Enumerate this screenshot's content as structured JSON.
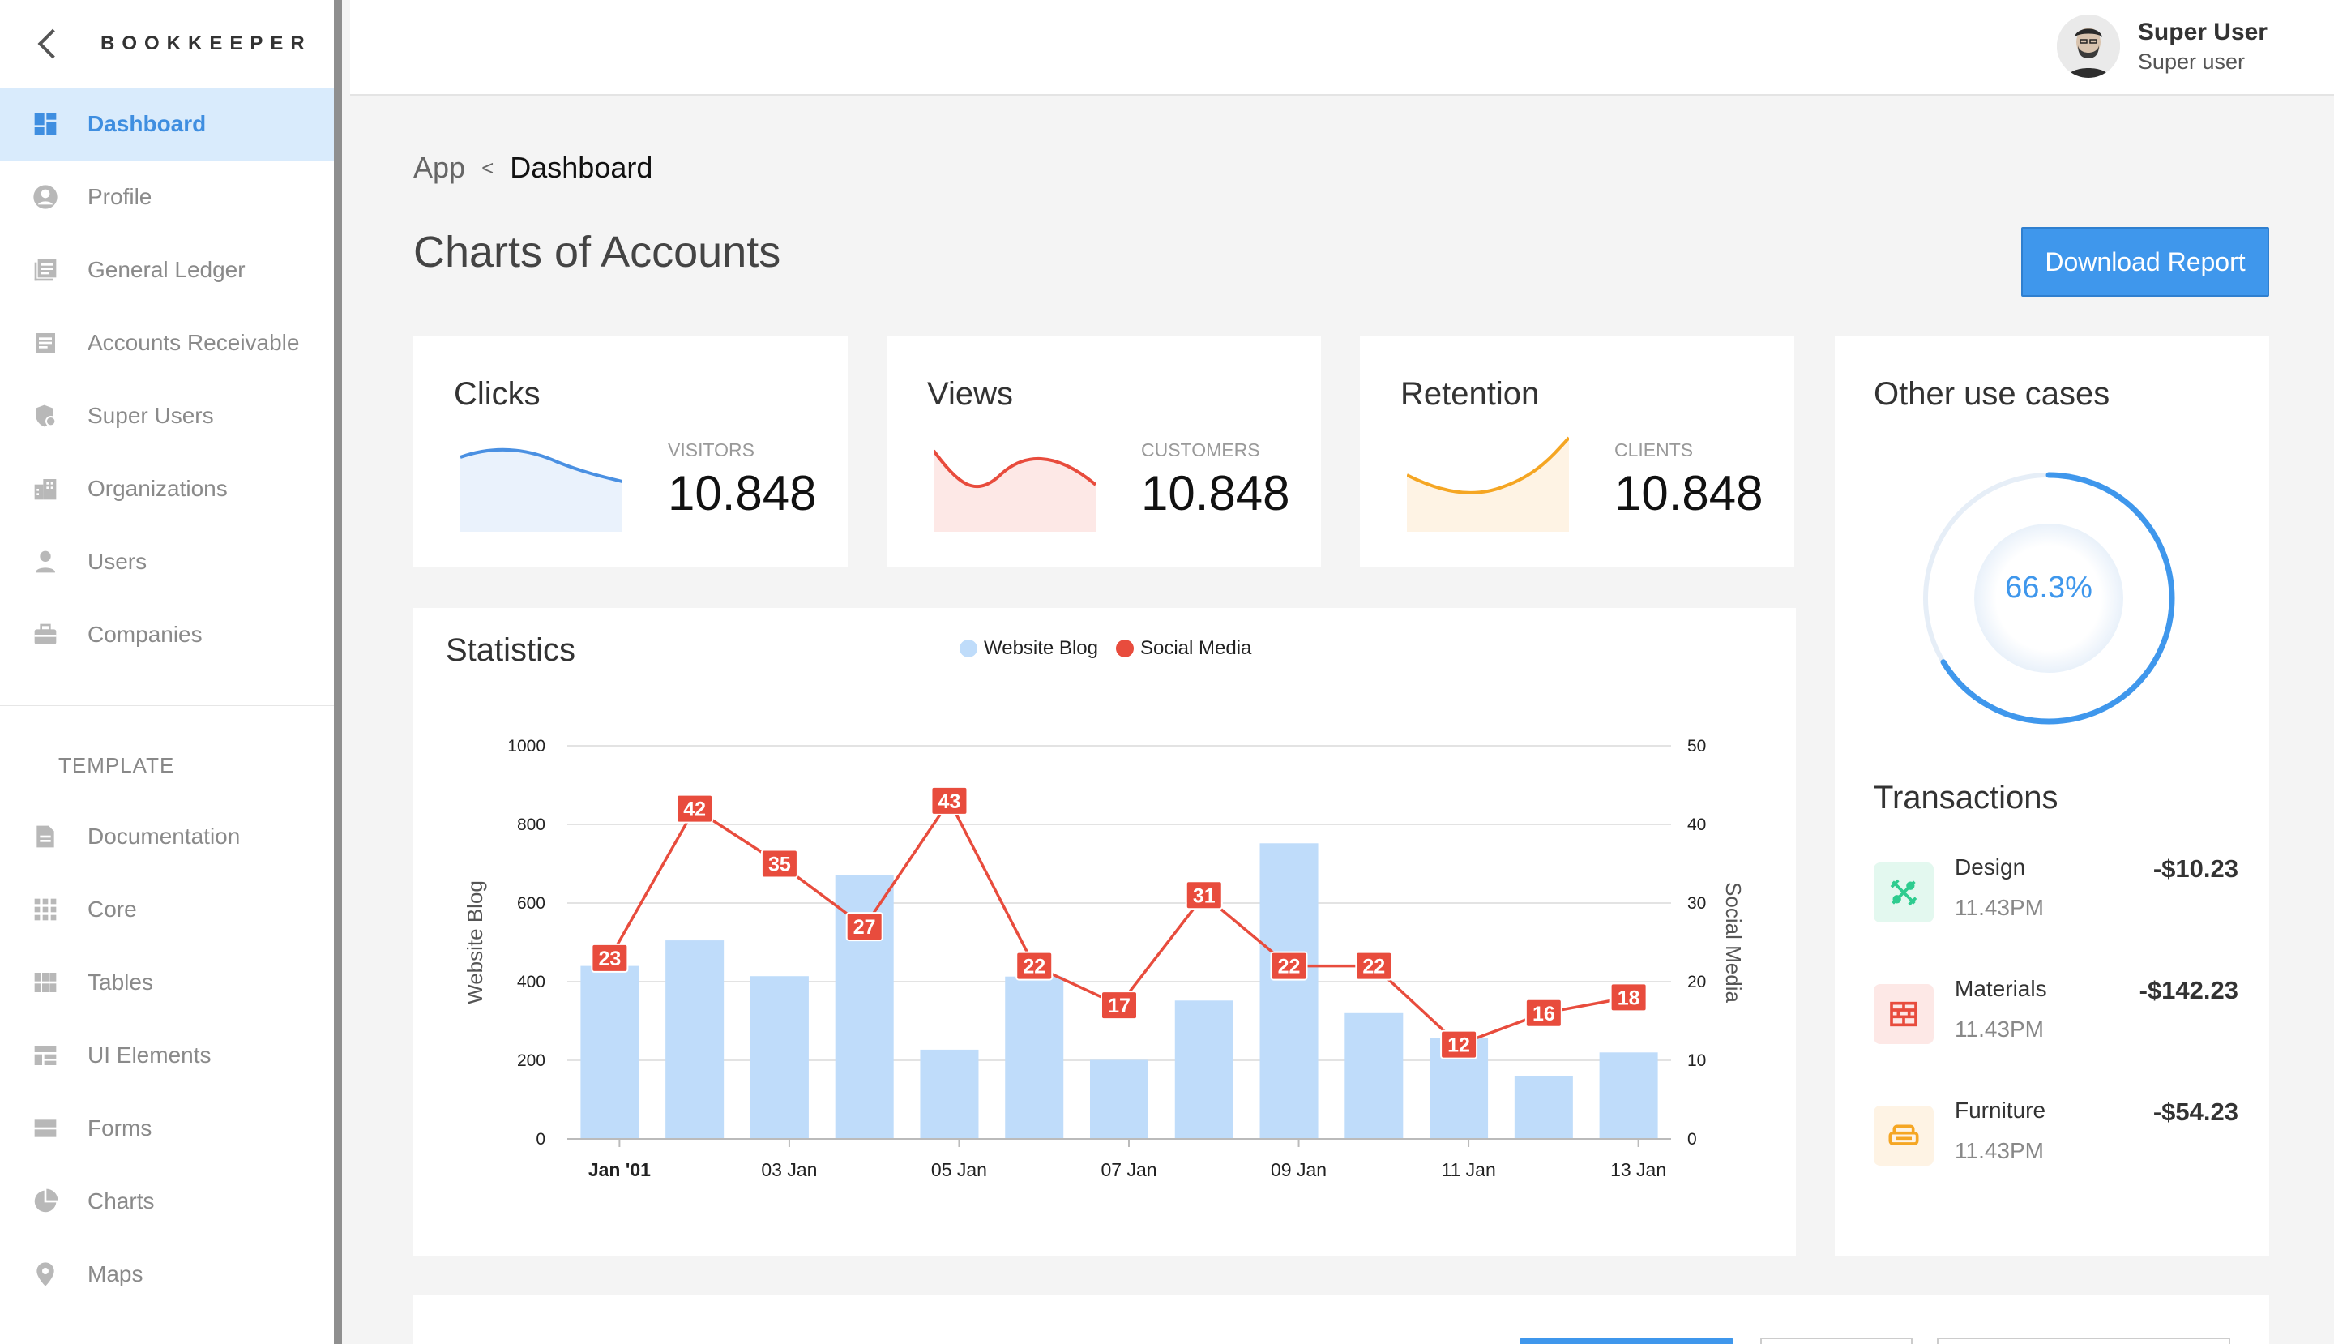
{
  "sidebar": {
    "brand": "BOOKKEEPER",
    "items": [
      {
        "label": "Dashboard",
        "icon": "dashboard-icon"
      },
      {
        "label": "Profile",
        "icon": "profile-icon"
      },
      {
        "label": "General Ledger",
        "icon": "ledger-icon"
      },
      {
        "label": "Accounts Receivable",
        "icon": "receivable-icon"
      },
      {
        "label": "Super Users",
        "icon": "super-users-icon"
      },
      {
        "label": "Organizations",
        "icon": "organizations-icon"
      },
      {
        "label": "Users",
        "icon": "user-icon"
      },
      {
        "label": "Companies",
        "icon": "briefcase-icon"
      }
    ],
    "section_label": "TEMPLATE",
    "template_items": [
      {
        "label": "Documentation",
        "icon": "document-icon"
      },
      {
        "label": "Core",
        "icon": "grid-icon"
      },
      {
        "label": "Tables",
        "icon": "table-icon"
      },
      {
        "label": "UI Elements",
        "icon": "ui-elements-icon"
      },
      {
        "label": "Forms",
        "icon": "forms-icon"
      },
      {
        "label": "Charts",
        "icon": "pie-chart-icon"
      },
      {
        "label": "Maps",
        "icon": "map-pin-icon"
      }
    ]
  },
  "header": {
    "user_name": "Super User",
    "user_role": "Super user"
  },
  "breadcrumb": {
    "root": "App",
    "separator": "<",
    "current": "Dashboard"
  },
  "page": {
    "title": "Charts of Accounts",
    "download_label": "Download Report"
  },
  "stats": [
    {
      "title": "Clicks",
      "label": "VISITORS",
      "value": "10.848",
      "color": "#4a90e2",
      "fill": "#eaf2fc"
    },
    {
      "title": "Views",
      "label": "CUSTOMERS",
      "value": "10.848",
      "color": "#e84c3d",
      "fill": "#fde8e6"
    },
    {
      "title": "Retention",
      "label": "CLIENTS",
      "value": "10.848",
      "color": "#f5a623",
      "fill": "#fef3e4"
    }
  ],
  "statistics": {
    "title": "Statistics"
  },
  "chart_data": {
    "type": "bar",
    "series": [
      {
        "name": "Website Blog",
        "type": "bar",
        "color": "#bfdcfa",
        "axis": "left",
        "values": [
          440,
          505,
          414,
          671,
          227,
          413,
          201,
          352,
          752,
          320,
          257,
          160,
          220
        ]
      },
      {
        "name": "Social Media",
        "type": "line",
        "color": "#e84c3d",
        "axis": "right",
        "values": [
          23,
          42,
          35,
          27,
          43,
          22,
          17,
          31,
          22,
          22,
          12,
          16,
          18
        ]
      }
    ],
    "x_tick_labels": [
      "Jan '01",
      "03 Jan",
      "05 Jan",
      "07 Jan",
      "09 Jan",
      "11 Jan",
      "13 Jan"
    ],
    "ylabel": "Website Blog",
    "y2label": "Social Media",
    "ylim": [
      0,
      1000
    ],
    "y2lim": [
      0,
      50
    ],
    "yticks": [
      0,
      200,
      400,
      600,
      800,
      1000
    ],
    "y2ticks": [
      0,
      10,
      20,
      30,
      40,
      50
    ],
    "legend": "top-center",
    "grid": true
  },
  "other": {
    "title": "Other use cases",
    "percent": 66.3,
    "percent_label": "66.3%",
    "color": "#3f97ec"
  },
  "transactions": {
    "title": "Transactions",
    "items": [
      {
        "name": "Design",
        "time": "11.43PM",
        "amount": "-$10.23",
        "icon": "design-tools-icon",
        "color": "#2ecc8f",
        "bg": "#e3f8ef"
      },
      {
        "name": "Materials",
        "time": "11.43PM",
        "amount": "-$142.23",
        "icon": "bricks-icon",
        "color": "#e84c3d",
        "bg": "#fde8e6"
      },
      {
        "name": "Furniture",
        "time": "11.43PM",
        "amount": "-$54.23",
        "icon": "sofa-icon",
        "color": "#f5a623",
        "bg": "#fef3e4"
      }
    ]
  }
}
